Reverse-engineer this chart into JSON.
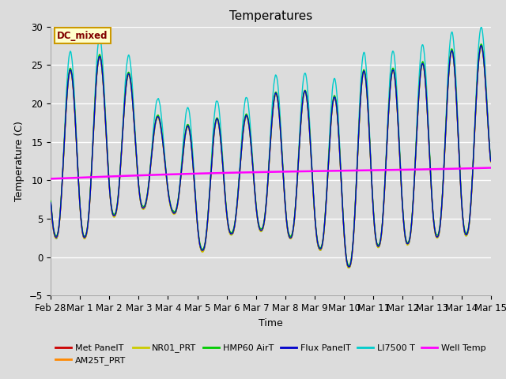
{
  "title": "Temperatures",
  "xlabel": "Time",
  "ylabel": "Temperature (C)",
  "ylim": [
    -5,
    30
  ],
  "background_color": "#dcdcdc",
  "plot_bg_color": "#dcdcdc",
  "grid_color": "#ffffff",
  "legend_box_color": "#ffffcc",
  "legend_box_edge": "#cc9900",
  "legend_box_text": "#800000",
  "legend_box_label": "DC_mixed",
  "series_colors": {
    "Met PanelT": "#cc0000",
    "AM25T_PRT": "#ff8800",
    "NR01_PRT": "#cccc00",
    "HMP60 AirT": "#00cc00",
    "Flux PanelT": "#0000cc",
    "LI7500 T": "#00cccc",
    "Well Temp": "#ff00ff"
  },
  "x_tick_labels": [
    "Feb 28",
    "Mar 1",
    "Mar 2",
    "Mar 3",
    "Mar 4",
    "Mar 5",
    "Mar 6",
    "Mar 7",
    "Mar 8",
    "Mar 9",
    "Mar 10",
    "Mar 11",
    "Mar 12",
    "Mar 13",
    "Mar 14",
    "Mar 15"
  ],
  "x_tick_positions": [
    0,
    1,
    2,
    3,
    4,
    5,
    6,
    7,
    8,
    9,
    10,
    11,
    12,
    13,
    14,
    15
  ],
  "yticks": [
    -5,
    0,
    5,
    10,
    15,
    20,
    25,
    30
  ]
}
